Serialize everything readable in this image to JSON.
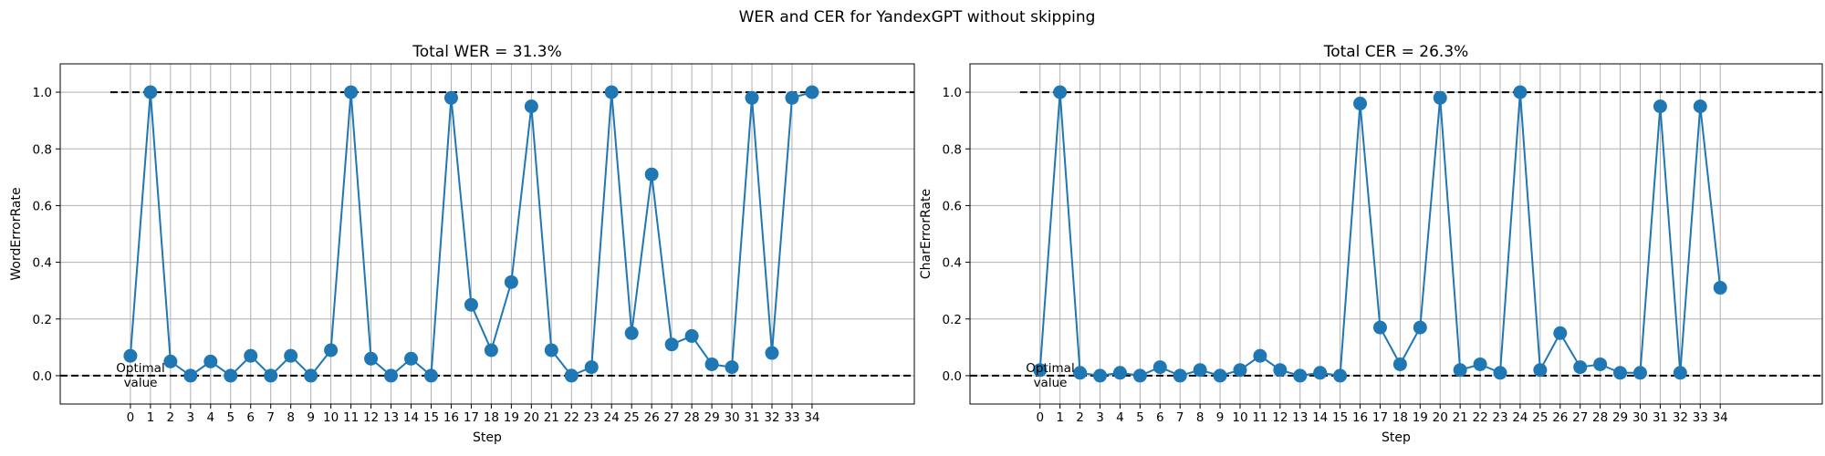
{
  "suptitle": "WER and CER for YandexGPT without skipping",
  "colors": {
    "series": "#1f77b4",
    "grid": "#b0b0b0",
    "reference": "#000000"
  },
  "chart_data": [
    {
      "type": "line",
      "title": "Total WER = 31.3%",
      "xlabel": "Step",
      "ylabel": "WordErrorRate",
      "x": [
        0,
        1,
        2,
        3,
        4,
        5,
        6,
        7,
        8,
        9,
        10,
        11,
        12,
        13,
        14,
        15,
        16,
        17,
        18,
        19,
        20,
        21,
        22,
        23,
        24,
        25,
        26,
        27,
        28,
        29,
        30,
        31,
        32,
        33,
        34
      ],
      "values": [
        0.07,
        1.0,
        0.05,
        0.0,
        0.05,
        0.0,
        0.07,
        0.0,
        0.07,
        0.0,
        0.09,
        1.0,
        0.06,
        0.0,
        0.06,
        0.0,
        0.98,
        0.25,
        0.09,
        0.33,
        0.95,
        0.09,
        0.0,
        0.03,
        1.0,
        0.15,
        0.71,
        0.11,
        0.14,
        0.04,
        0.03,
        0.98,
        0.08,
        0.98,
        1.0
      ],
      "ylim": [
        -0.1,
        1.1
      ],
      "yticks": [
        "0.0",
        "0.2",
        "0.4",
        "0.6",
        "0.8",
        "1.0"
      ],
      "reference_lines": [
        1.0,
        0.0
      ],
      "annotation": [
        "Optimal",
        "value"
      ],
      "grid": true
    },
    {
      "type": "line",
      "title": "Total CER = 26.3%",
      "xlabel": "Step",
      "ylabel": "CharErrorRate",
      "x": [
        0,
        1,
        2,
        3,
        4,
        5,
        6,
        7,
        8,
        9,
        10,
        11,
        12,
        13,
        14,
        15,
        16,
        17,
        18,
        19,
        20,
        21,
        22,
        23,
        24,
        25,
        26,
        27,
        28,
        29,
        30,
        31,
        32,
        33,
        34
      ],
      "values": [
        0.02,
        1.0,
        0.01,
        0.0,
        0.01,
        0.0,
        0.03,
        0.0,
        0.02,
        0.0,
        0.02,
        0.07,
        0.02,
        0.0,
        0.01,
        0.0,
        0.96,
        0.17,
        0.04,
        0.17,
        0.98,
        0.02,
        0.04,
        0.01,
        1.0,
        0.02,
        0.15,
        0.03,
        0.04,
        0.01,
        0.01,
        0.95,
        0.01,
        0.95,
        0.31
      ],
      "ylim": [
        -0.1,
        1.1
      ],
      "yticks": [
        "0.0",
        "0.2",
        "0.4",
        "0.6",
        "0.8",
        "1.0"
      ],
      "reference_lines": [
        1.0,
        0.0
      ],
      "annotation": [
        "Optimal",
        "value"
      ],
      "grid": true
    }
  ]
}
